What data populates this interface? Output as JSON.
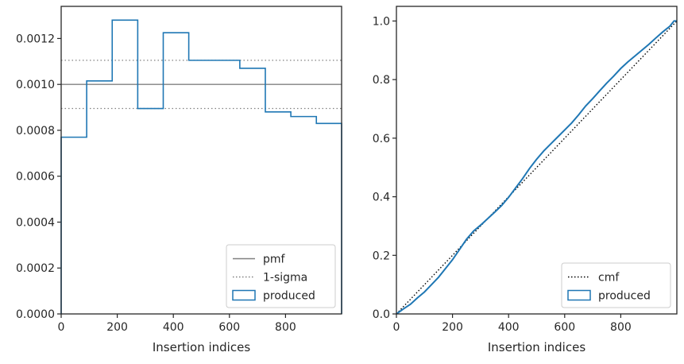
{
  "chart_data": [
    {
      "type": "step",
      "xlabel": "Insertion indices",
      "ylabel": "",
      "xlim": [
        0,
        1000
      ],
      "ylim": [
        0,
        0.00134
      ],
      "xticks": [
        0,
        200,
        400,
        600,
        800
      ],
      "xtick_labels": [
        "0",
        "200",
        "400",
        "600",
        "800"
      ],
      "yticks": [
        0,
        0.0002,
        0.0004,
        0.0006,
        0.0008,
        0.001,
        0.0012
      ],
      "ytick_labels": [
        "0.0000",
        "0.0002",
        "0.0004",
        "0.0006",
        "0.0008",
        "0.0010",
        "0.0012"
      ],
      "grid": false,
      "legend_position": "lower-right",
      "legend": [
        "pmf",
        "1-sigma",
        "produced"
      ],
      "reference_lines": [
        {
          "name": "pmf",
          "value": 0.001,
          "style": "solid",
          "color": "#808080"
        },
        {
          "name": "1-sigma",
          "value": 0.001105,
          "style": "dotted",
          "color": "#808080"
        },
        {
          "name": "1-sigma",
          "value": 0.000895,
          "style": "dotted",
          "color": "#808080"
        }
      ],
      "series": [
        {
          "name": "produced",
          "color": "#1f77b4",
          "bin_edges": [
            0,
            91,
            182,
            273,
            364,
            455,
            546,
            637,
            728,
            819,
            910,
            1000
          ],
          "values": [
            0.00077,
            0.001015,
            0.00128,
            0.000895,
            0.001225,
            0.001105,
            0.001105,
            0.00107,
            0.00088,
            0.00086,
            0.00083
          ]
        }
      ]
    },
    {
      "type": "line",
      "xlabel": "Insertion indices",
      "ylabel": "",
      "xlim": [
        0,
        1000
      ],
      "ylim": [
        0,
        1.05
      ],
      "xticks": [
        0,
        200,
        400,
        600,
        800
      ],
      "xtick_labels": [
        "0",
        "200",
        "400",
        "600",
        "800"
      ],
      "yticks": [
        0,
        0.2,
        0.4,
        0.6,
        0.8,
        1.0
      ],
      "ytick_labels": [
        "0.0",
        "0.2",
        "0.4",
        "0.6",
        "0.8",
        "1.0"
      ],
      "grid": false,
      "legend_position": "lower-right",
      "legend": [
        "cmf",
        "produced"
      ],
      "series": [
        {
          "name": "cmf",
          "style": "dotted",
          "color": "#000000",
          "x": [
            0,
            1000
          ],
          "y": [
            0,
            1.0
          ]
        },
        {
          "name": "produced",
          "style": "solid",
          "color": "#1f77b4",
          "x": [
            0,
            25,
            50,
            75,
            100,
            125,
            150,
            175,
            200,
            225,
            250,
            275,
            300,
            325,
            350,
            375,
            400,
            425,
            450,
            475,
            500,
            525,
            550,
            575,
            600,
            625,
            650,
            675,
            700,
            725,
            750,
            775,
            800,
            825,
            850,
            875,
            900,
            925,
            950,
            975,
            990,
            1000
          ],
          "y": [
            0.0,
            0.017,
            0.033,
            0.055,
            0.075,
            0.1,
            0.125,
            0.155,
            0.185,
            0.22,
            0.255,
            0.283,
            0.303,
            0.325,
            0.347,
            0.37,
            0.398,
            0.43,
            0.462,
            0.497,
            0.528,
            0.556,
            0.58,
            0.604,
            0.628,
            0.652,
            0.68,
            0.71,
            0.735,
            0.762,
            0.788,
            0.812,
            0.838,
            0.86,
            0.88,
            0.9,
            0.92,
            0.942,
            0.963,
            0.982,
            1.0,
            1.0
          ]
        }
      ]
    }
  ]
}
